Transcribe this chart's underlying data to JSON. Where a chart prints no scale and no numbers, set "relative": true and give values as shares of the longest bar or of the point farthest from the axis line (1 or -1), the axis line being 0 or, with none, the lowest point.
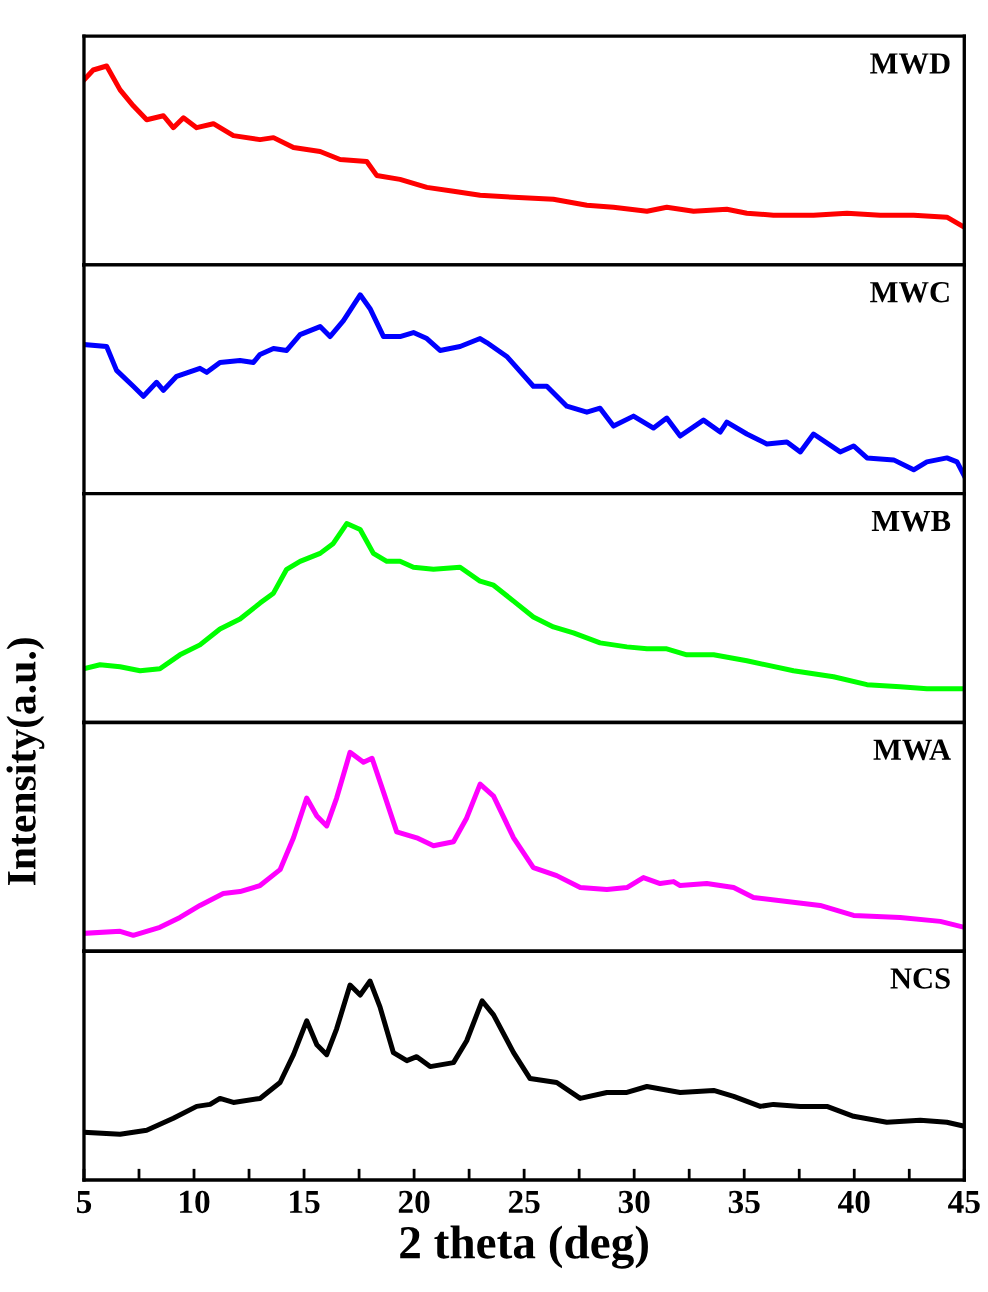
{
  "chart_data": [
    {
      "type": "line",
      "relative": true,
      "xlim": [
        5,
        45
      ],
      "tick_labels": false,
      "grid": false,
      "series": [
        {
          "name": "MWD",
          "color": "#ff0000",
          "x": [
            5.0,
            5.42,
            6.03,
            6.64,
            7.24,
            7.85,
            8.61,
            9.06,
            9.52,
            10.12,
            10.88,
            11.79,
            13.0,
            13.61,
            14.52,
            15.73,
            16.64,
            17.85,
            18.3,
            19.36,
            20.58,
            21.79,
            23.0,
            24.52,
            26.33,
            27.85,
            29.06,
            30.58,
            31.48,
            32.7,
            34.21,
            35.12,
            36.33,
            38.15,
            39.67,
            41.18,
            42.7,
            44.21,
            45.0
          ],
          "values": [
            0.93,
            0.98,
            1.0,
            0.88,
            0.8,
            0.73,
            0.75,
            0.69,
            0.74,
            0.69,
            0.71,
            0.65,
            0.63,
            0.64,
            0.59,
            0.57,
            0.53,
            0.52,
            0.45,
            0.43,
            0.39,
            0.37,
            0.35,
            0.34,
            0.33,
            0.3,
            0.29,
            0.27,
            0.29,
            0.27,
            0.28,
            0.26,
            0.25,
            0.25,
            0.26,
            0.25,
            0.25,
            0.24,
            0.19
          ]
        }
      ]
    },
    {
      "type": "line",
      "relative": true,
      "xlim": [
        5,
        45
      ],
      "tick_labels": false,
      "grid": false,
      "series": [
        {
          "name": "MWC",
          "color": "#0000ff",
          "x": [
            5.0,
            6.03,
            6.48,
            7.24,
            7.7,
            8.3,
            8.61,
            9.21,
            10.27,
            10.58,
            11.18,
            12.09,
            12.7,
            13.0,
            13.61,
            14.21,
            14.82,
            15.73,
            16.18,
            16.79,
            17.55,
            18.0,
            18.61,
            19.36,
            19.97,
            20.58,
            21.18,
            22.09,
            23.0,
            23.3,
            24.21,
            25.42,
            26.03,
            26.94,
            27.85,
            28.45,
            29.06,
            29.97,
            30.88,
            31.48,
            32.09,
            33.15,
            33.91,
            34.21,
            35.12,
            36.03,
            36.94,
            37.55,
            38.15,
            39.36,
            39.97,
            40.58,
            41.79,
            42.7,
            43.3,
            44.21,
            44.67,
            45.0
          ],
          "values": [
            0.75,
            0.74,
            0.62,
            0.54,
            0.49,
            0.56,
            0.52,
            0.59,
            0.63,
            0.61,
            0.66,
            0.67,
            0.66,
            0.7,
            0.73,
            0.72,
            0.8,
            0.84,
            0.79,
            0.87,
            1.0,
            0.93,
            0.79,
            0.79,
            0.81,
            0.78,
            0.72,
            0.74,
            0.78,
            0.76,
            0.69,
            0.54,
            0.54,
            0.44,
            0.41,
            0.43,
            0.34,
            0.39,
            0.33,
            0.38,
            0.29,
            0.37,
            0.31,
            0.36,
            0.3,
            0.25,
            0.26,
            0.21,
            0.3,
            0.21,
            0.24,
            0.18,
            0.17,
            0.12,
            0.16,
            0.18,
            0.16,
            0.09
          ]
        }
      ]
    },
    {
      "type": "line",
      "relative": true,
      "xlim": [
        5,
        45
      ],
      "tick_labels": false,
      "grid": false,
      "series": [
        {
          "name": "MWB",
          "color": "#00ff00",
          "x": [
            5.0,
            5.73,
            6.64,
            7.55,
            8.45,
            9.36,
            10.27,
            11.18,
            12.09,
            13.0,
            13.61,
            14.21,
            14.82,
            15.73,
            16.33,
            16.94,
            17.55,
            18.15,
            18.76,
            19.36,
            19.97,
            20.88,
            22.09,
            23.0,
            23.61,
            24.52,
            25.42,
            26.33,
            27.24,
            28.45,
            29.67,
            30.58,
            31.48,
            32.39,
            33.61,
            35.12,
            37.24,
            39.06,
            40.58,
            42.09,
            43.3,
            45.0
          ],
          "values": [
            0.27,
            0.29,
            0.28,
            0.26,
            0.27,
            0.34,
            0.39,
            0.47,
            0.52,
            0.6,
            0.65,
            0.77,
            0.81,
            0.85,
            0.9,
            1.0,
            0.97,
            0.85,
            0.81,
            0.81,
            0.78,
            0.77,
            0.78,
            0.71,
            0.69,
            0.61,
            0.53,
            0.48,
            0.45,
            0.4,
            0.38,
            0.37,
            0.37,
            0.34,
            0.34,
            0.31,
            0.26,
            0.23,
            0.19,
            0.18,
            0.17,
            0.17
          ]
        }
      ]
    },
    {
      "type": "line",
      "relative": true,
      "xlim": [
        5,
        45
      ],
      "tick_labels": false,
      "grid": false,
      "ylabel": "Intensity(a.u.)",
      "series": [
        {
          "name": "MWA",
          "color": "#ff00ff",
          "x": [
            5.0,
            6.64,
            7.24,
            8.45,
            9.36,
            10.27,
            11.33,
            12.09,
            13.0,
            13.91,
            14.52,
            15.12,
            15.58,
            16.03,
            16.48,
            17.09,
            17.7,
            18.09,
            18.61,
            19.21,
            20.12,
            20.88,
            21.79,
            22.39,
            23.0,
            23.61,
            24.52,
            25.42,
            26.48,
            27.55,
            28.76,
            29.67,
            30.42,
            31.18,
            31.79,
            32.09,
            33.3,
            34.52,
            35.42,
            36.94,
            38.45,
            39.97,
            42.09,
            43.91,
            45.0
          ],
          "values": [
            0.09,
            0.1,
            0.08,
            0.12,
            0.17,
            0.23,
            0.29,
            0.3,
            0.33,
            0.41,
            0.57,
            0.77,
            0.68,
            0.63,
            0.77,
            1.0,
            0.95,
            0.97,
            0.8,
            0.6,
            0.57,
            0.53,
            0.55,
            0.67,
            0.84,
            0.78,
            0.57,
            0.42,
            0.38,
            0.32,
            0.31,
            0.32,
            0.37,
            0.34,
            0.35,
            0.33,
            0.34,
            0.32,
            0.27,
            0.25,
            0.23,
            0.18,
            0.17,
            0.15,
            0.12
          ]
        }
      ]
    },
    {
      "type": "line",
      "relative": true,
      "xlim": [
        5,
        45
      ],
      "tick_labels": "x",
      "grid": false,
      "xlabel": "2 theta (deg)",
      "xticks": [
        5,
        {
          "value": 7.5,
          "label": null
        },
        10,
        {
          "value": 12.5,
          "label": null
        },
        15,
        {
          "value": 17.5,
          "label": null
        },
        20,
        {
          "value": 22.5,
          "label": null
        },
        25,
        {
          "value": 27.5,
          "label": null
        },
        30,
        {
          "value": 32.5,
          "label": null
        },
        35,
        {
          "value": 37.5,
          "label": null
        },
        40,
        {
          "value": 42.5,
          "label": null
        },
        45
      ],
      "series": [
        {
          "name": "NCS",
          "color": "#000000",
          "x": [
            5.0,
            6.64,
            7.85,
            9.06,
            10.12,
            10.73,
            11.18,
            11.79,
            13.0,
            13.91,
            14.52,
            15.12,
            15.58,
            16.03,
            16.48,
            17.09,
            17.55,
            18.0,
            18.45,
            19.06,
            19.67,
            20.12,
            20.73,
            21.79,
            22.39,
            23.09,
            23.61,
            24.52,
            25.27,
            26.48,
            27.55,
            28.76,
            29.67,
            30.58,
            32.09,
            33.61,
            34.52,
            35.73,
            36.33,
            37.55,
            38.76,
            39.97,
            41.48,
            43.0,
            44.21,
            45.0
          ],
          "values": [
            0.24,
            0.23,
            0.25,
            0.31,
            0.37,
            0.38,
            0.41,
            0.39,
            0.41,
            0.49,
            0.63,
            0.8,
            0.68,
            0.63,
            0.76,
            0.98,
            0.93,
            1.0,
            0.87,
            0.64,
            0.6,
            0.62,
            0.57,
            0.59,
            0.7,
            0.9,
            0.83,
            0.64,
            0.51,
            0.49,
            0.41,
            0.44,
            0.44,
            0.47,
            0.44,
            0.45,
            0.42,
            0.37,
            0.38,
            0.37,
            0.37,
            0.32,
            0.29,
            0.3,
            0.29,
            0.27
          ]
        }
      ]
    }
  ]
}
